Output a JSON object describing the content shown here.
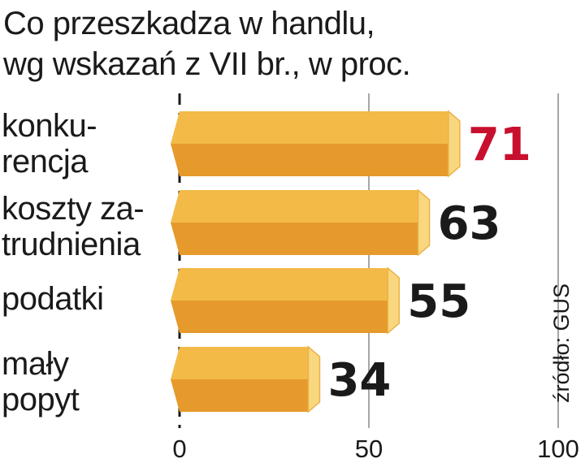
{
  "chart_data": {
    "type": "bar",
    "orientation": "horizontal",
    "title": [
      "Co przeszkadza w handlu,",
      "wg wskazań z VII br., w proc."
    ],
    "categories": [
      "konku-\nrencja",
      "koszty za-\ntrudnienia",
      "podatki",
      "mały\npopyt"
    ],
    "values": [
      71,
      63,
      55,
      34
    ],
    "xlim": [
      0,
      100
    ],
    "xticks": [
      0,
      50,
      100
    ],
    "grid": true,
    "source": "źródło: GUS",
    "colors": {
      "bar_top": "#F3BA47",
      "bar_bottom": "#E59A2B",
      "bar_cap": "#F9D77F",
      "bar_cap_edge": "#EAB34A",
      "highlight_value": "#C8102E",
      "value": "#1a1a1a",
      "grid": "#8a8a8a"
    },
    "highlight_index": 0
  }
}
